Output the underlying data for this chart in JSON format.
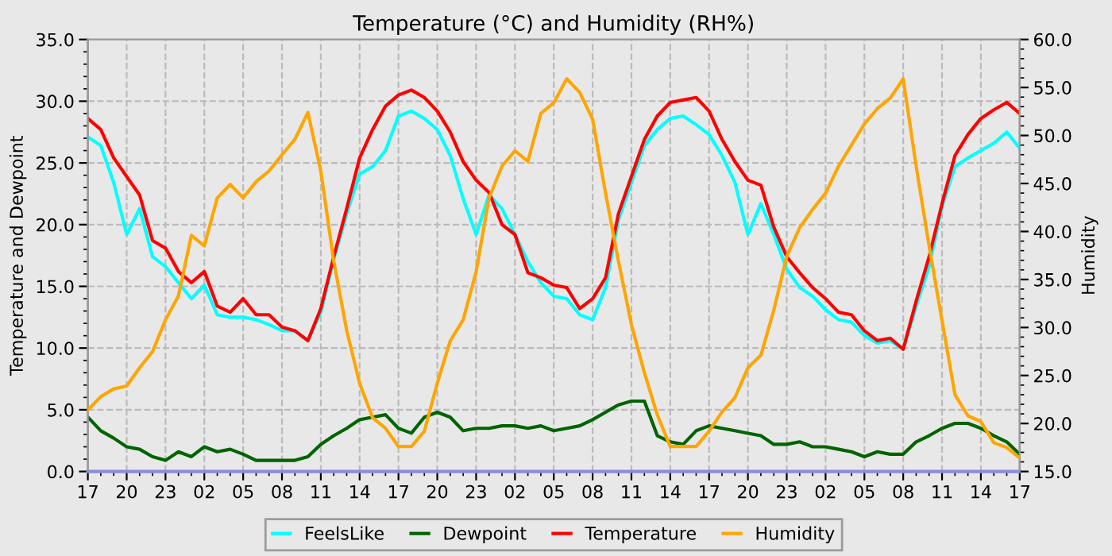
{
  "chart_data": {
    "type": "line",
    "title": "Temperature (°C) and Humidity (RH%)",
    "ylabel": "Temperature and Dewpoint",
    "y2label": "Humidity",
    "categories": [
      "17",
      null,
      null,
      "20",
      null,
      null,
      "23",
      null,
      null,
      "02",
      null,
      null,
      "05",
      null,
      null,
      "08",
      null,
      null,
      "11",
      null,
      null,
      "14",
      null,
      null,
      "17",
      null,
      null,
      "20",
      null,
      null,
      "23",
      null,
      null,
      "02",
      null,
      null,
      "05",
      null,
      null,
      "08",
      null,
      null,
      "11",
      null,
      null,
      "14",
      null,
      null,
      "17",
      null,
      null,
      "20",
      null,
      null,
      "23",
      null,
      null,
      "02",
      null,
      null,
      "05",
      null,
      null,
      "08",
      null,
      null,
      "11",
      null,
      null,
      "14",
      null,
      null,
      "17"
    ],
    "ylim": [
      0,
      35
    ],
    "yticks": [
      {
        "value": 0,
        "label": "0.0"
      },
      {
        "value": 5,
        "label": "5.0"
      },
      {
        "value": 10,
        "label": "10.0"
      },
      {
        "value": 15,
        "label": "15.0"
      },
      {
        "value": 20,
        "label": "20.0"
      },
      {
        "value": 25,
        "label": "25.0"
      },
      {
        "value": 30,
        "label": "30.0"
      },
      {
        "value": 35,
        "label": "35.0"
      }
    ],
    "y2lim": [
      15,
      60
    ],
    "y2ticks": [
      {
        "value": 15,
        "label": "15.0"
      },
      {
        "value": 20,
        "label": "20.0"
      },
      {
        "value": 25,
        "label": "25.0"
      },
      {
        "value": 30,
        "label": "30.0"
      },
      {
        "value": 35,
        "label": "35.0"
      },
      {
        "value": 40,
        "label": "40.0"
      },
      {
        "value": 45,
        "label": "45.0"
      },
      {
        "value": 50,
        "label": "50.0"
      },
      {
        "value": 55,
        "label": "55.0"
      },
      {
        "value": 60,
        "label": "60.0"
      }
    ],
    "grid": true,
    "legend": "bottom",
    "series": [
      {
        "name": "FeelsLike",
        "color": "#00ffff",
        "values": [
          27.1,
          26.4,
          23.4,
          19.2,
          21.3,
          17.4,
          16.6,
          15.3,
          14.0,
          15.1,
          12.7,
          12.5,
          12.5,
          12.3,
          11.9,
          11.4,
          11.4,
          10.6,
          12.9,
          17.2,
          20.9,
          24.1,
          24.7,
          26.0,
          28.8,
          29.2,
          28.6,
          27.7,
          25.6,
          22.1,
          19.2,
          22.4,
          21.3,
          19.2,
          17.0,
          15.3,
          14.2,
          14.0,
          12.7,
          12.3,
          14.9,
          20.4,
          23.4,
          26.4,
          27.7,
          28.6,
          28.8,
          28.1,
          27.3,
          25.6,
          23.4,
          19.2,
          21.7,
          19.2,
          16.4,
          14.9,
          14.2,
          13.1,
          12.3,
          12.1,
          11.0,
          10.4,
          10.6,
          9.9,
          13.4,
          16.6,
          21.5,
          24.7,
          25.4,
          26.0,
          26.6,
          27.5,
          26.2
        ]
      },
      {
        "name": "Dewpoint",
        "color": "#006400",
        "values": [
          4.4,
          3.3,
          2.7,
          2.0,
          1.8,
          1.2,
          0.9,
          1.6,
          1.2,
          2.0,
          1.6,
          1.8,
          1.4,
          0.9,
          0.9,
          0.9,
          0.9,
          1.2,
          2.2,
          2.9,
          3.5,
          4.2,
          4.4,
          4.6,
          3.5,
          3.1,
          4.4,
          4.8,
          4.4,
          3.3,
          3.5,
          3.5,
          3.7,
          3.7,
          3.5,
          3.7,
          3.3,
          3.5,
          3.7,
          4.2,
          4.8,
          5.4,
          5.7,
          5.7,
          2.9,
          2.4,
          2.2,
          3.3,
          3.7,
          3.5,
          3.3,
          3.1,
          2.9,
          2.2,
          2.2,
          2.4,
          2.0,
          2.0,
          1.8,
          1.6,
          1.2,
          1.6,
          1.4,
          1.4,
          2.4,
          2.9,
          3.5,
          3.9,
          3.9,
          3.5,
          2.9,
          2.4,
          1.4
        ]
      },
      {
        "name": "Temperature",
        "color": "#ff0000",
        "values": [
          28.6,
          27.7,
          25.4,
          23.9,
          22.4,
          18.7,
          18.1,
          16.2,
          15.3,
          16.2,
          13.4,
          12.9,
          14.0,
          12.7,
          12.7,
          11.7,
          11.4,
          10.6,
          13.2,
          17.4,
          21.3,
          25.4,
          27.7,
          29.6,
          30.5,
          30.9,
          30.3,
          29.2,
          27.5,
          25.1,
          23.6,
          22.6,
          20.0,
          19.2,
          16.1,
          15.7,
          15.1,
          14.9,
          13.2,
          14.0,
          15.7,
          20.9,
          23.9,
          26.9,
          28.8,
          29.9,
          30.1,
          30.3,
          29.2,
          26.9,
          25.1,
          23.6,
          23.2,
          19.8,
          17.4,
          16.1,
          14.9,
          14.0,
          12.9,
          12.7,
          11.4,
          10.6,
          10.8,
          9.9,
          13.8,
          17.4,
          21.7,
          25.6,
          27.3,
          28.6,
          29.3,
          29.9,
          29.0
        ]
      },
      {
        "name": "Humidity",
        "color": "#ffa500",
        "axis": "y2",
        "values": [
          21.4,
          22.8,
          23.6,
          23.9,
          25.8,
          27.5,
          30.8,
          33.3,
          39.6,
          38.5,
          43.5,
          44.9,
          43.5,
          45.2,
          46.3,
          48.0,
          49.6,
          52.4,
          46.3,
          36.9,
          29.7,
          24.2,
          20.6,
          19.5,
          17.6,
          17.6,
          19.2,
          24.2,
          28.6,
          30.8,
          35.8,
          43.5,
          46.8,
          48.4,
          47.3,
          52.3,
          53.4,
          55.9,
          54.5,
          51.7,
          44.0,
          36.9,
          30.3,
          25.3,
          20.9,
          17.6,
          17.6,
          17.6,
          19.2,
          21.2,
          22.7,
          25.8,
          27.1,
          31.8,
          37.4,
          40.4,
          42.3,
          44.0,
          46.8,
          49.0,
          51.2,
          52.8,
          53.9,
          55.9,
          46.8,
          38.5,
          30.7,
          23.0,
          20.8,
          20.2,
          18.0,
          17.5,
          16.4
        ]
      }
    ]
  }
}
